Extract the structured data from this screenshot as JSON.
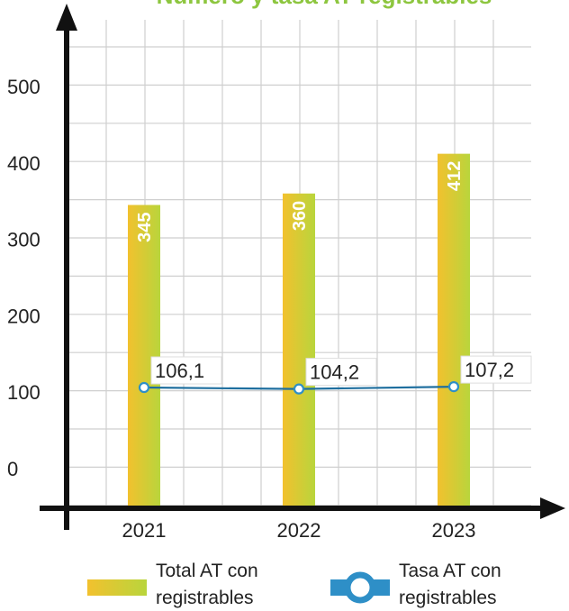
{
  "chart_data": {
    "type": "bar",
    "title": "Número y tasa AT registrables",
    "categories": [
      "2021",
      "2022",
      "2023"
    ],
    "series": [
      {
        "name": "Total AT con registrables",
        "kind": "bar",
        "values": [
          345,
          360,
          412
        ],
        "labels": [
          "345",
          "360",
          "412"
        ]
      },
      {
        "name": "Tasa AT con registrables",
        "kind": "line",
        "values": [
          106.1,
          104.2,
          107.2
        ],
        "labels": [
          "106,1",
          "104,2",
          "107,2"
        ]
      }
    ],
    "yticks": [
      "0",
      "100",
      "200",
      "300",
      "400",
      "500"
    ],
    "ylim": [
      0,
      500
    ],
    "grid": true,
    "legend_position": "bottom",
    "legend": {
      "bar_line1": "Total AT con",
      "bar_line2": "registrables",
      "line_line1": "Tasa AT con",
      "line_line2": "registrables"
    },
    "colors": {
      "bar_start": "#f2c12e",
      "bar_end": "#b9d53c",
      "line": "#1f6f9f",
      "line_marker": "#2e8fc7",
      "grid": "#cfcfcf",
      "axis": "#111111",
      "title": "#8dc63f"
    }
  }
}
